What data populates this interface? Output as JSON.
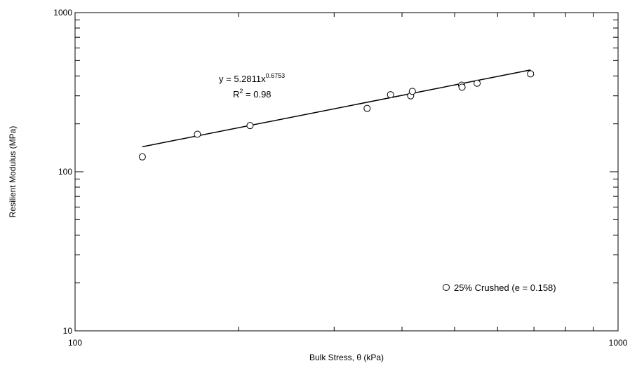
{
  "chart_data": {
    "type": "scatter",
    "xscale": "log",
    "yscale": "log",
    "xlim": [
      100,
      1000
    ],
    "ylim": [
      10,
      1000
    ],
    "xlabel": "Bulk Stress, θ (kPa)",
    "ylabel": "Resilient Modulus (MPa)",
    "x_tick_labels": [
      "100",
      "1000"
    ],
    "y_tick_labels": [
      "10",
      "100",
      "1000"
    ],
    "grid": false,
    "series": [
      {
        "name": "25% Crushed (e = 0.158)",
        "marker": "open-circle",
        "x": [
          133,
          168,
          210,
          345,
          381,
          415,
          418,
          515,
          516,
          550,
          690
        ],
        "y": [
          124,
          172,
          195,
          250,
          305,
          300,
          320,
          350,
          340,
          360,
          412
        ]
      }
    ],
    "fit": {
      "type": "power",
      "a": 5.2811,
      "b": 0.6753,
      "x_range": [
        133,
        690
      ],
      "equation_prefix": "y = 5.2811x",
      "equation_exponent": "0.6753",
      "r2_prefix": "R",
      "r2_exponent": "2",
      "r2_suffix": " = 0.98"
    },
    "legend": {
      "position": "bottom-right",
      "label": "25% Crushed (e = 0.158)"
    }
  }
}
